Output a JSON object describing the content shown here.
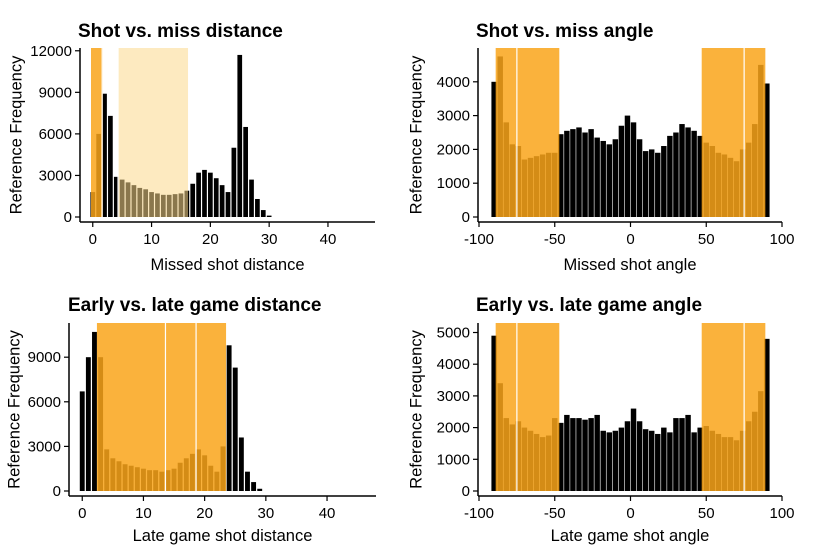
{
  "chart_data": [
    {
      "type": "bar",
      "title": "Shot vs. miss distance",
      "xlabel": "Missed shot distance",
      "ylabel": "Reference Frequency",
      "xlim": [
        -2,
        48
      ],
      "ylim": [
        0,
        12200
      ],
      "x_ticks": [
        0,
        10,
        20,
        30,
        40
      ],
      "y_ticks": [
        0,
        3000,
        6000,
        9000,
        12000
      ],
      "y_tick_labels": [
        "0",
        "3000",
        "6000",
        "9000",
        "12000"
      ],
      "bar_width": 0.8,
      "x": [
        0,
        1,
        2,
        3,
        4,
        5,
        6,
        7,
        8,
        9,
        10,
        11,
        12,
        13,
        14,
        15,
        16,
        17,
        18,
        19,
        20,
        21,
        22,
        23,
        24,
        25,
        26,
        27,
        28,
        29,
        30
      ],
      "values": [
        1800,
        6000,
        8900,
        7300,
        2900,
        2700,
        2500,
        2300,
        2100,
        2000,
        1800,
        1700,
        1600,
        1600,
        1650,
        1700,
        1900,
        2400,
        3200,
        3400,
        3200,
        2800,
        2300,
        1800,
        5000,
        11700,
        6500,
        2700,
        1300,
        500,
        100
      ],
      "shaded_regions": [
        {
          "x0": -0.3,
          "x1": 1.7,
          "color": "#f9a41a",
          "opacity": 0.85
        },
        {
          "x0": 4.3,
          "x1": 16.2,
          "color": "#fcd98c",
          "opacity": 0.55
        }
      ],
      "vlines": [
        1.6,
        4.3
      ]
    },
    {
      "type": "bar",
      "title": "Shot vs. miss angle",
      "xlabel": "Missed shot angle",
      "ylabel": "Reference Frequency",
      "xlim": [
        -100,
        100
      ],
      "ylim": [
        0,
        5000
      ],
      "x_ticks": [
        -100,
        -50,
        0,
        50,
        100
      ],
      "y_ticks": [
        0,
        1000,
        2000,
        3000,
        4000
      ],
      "y_tick_labels": [
        "0",
        "1000",
        "2000",
        "3000",
        "4000"
      ],
      "bar_width": 3.6,
      "x": [
        -90,
        -86,
        -82,
        -78,
        -74,
        -70,
        -66,
        -62,
        -58,
        -54,
        -50,
        -46,
        -42,
        -38,
        -34,
        -30,
        -26,
        -22,
        -18,
        -14,
        -10,
        -6,
        -2,
        2,
        6,
        10,
        14,
        18,
        22,
        26,
        30,
        34,
        38,
        42,
        46,
        50,
        54,
        58,
        62,
        66,
        70,
        74,
        78,
        82,
        86,
        90
      ],
      "values": [
        4000,
        4750,
        2800,
        2150,
        2100,
        1700,
        1750,
        1800,
        1850,
        1900,
        1900,
        2450,
        2550,
        2600,
        2650,
        2500,
        2600,
        2350,
        2250,
        2150,
        2300,
        2700,
        3000,
        2800,
        2300,
        1950,
        2000,
        1900,
        2100,
        2400,
        2500,
        2750,
        2650,
        2550,
        2400,
        2200,
        2100,
        1900,
        1850,
        1750,
        1650,
        2000,
        2200,
        2750,
        4500,
        3950
      ],
      "shaded_regions": [
        {
          "x0": -89,
          "x1": -47,
          "color": "#f9a41a",
          "opacity": 0.85
        },
        {
          "x0": 47,
          "x1": 89,
          "color": "#f9a41a",
          "opacity": 0.85
        }
      ],
      "vlines": [
        -75,
        75
      ]
    },
    {
      "type": "bar",
      "title": "Early vs. late game distance",
      "xlabel": "Late game shot distance",
      "ylabel": "Reference Frequency",
      "xlim": [
        -2,
        48
      ],
      "ylim": [
        0,
        11300
      ],
      "x_ticks": [
        0,
        10,
        20,
        30,
        40
      ],
      "y_ticks": [
        0,
        3000,
        6000,
        9000
      ],
      "y_tick_labels": [
        "0",
        "3000",
        "6000",
        "9000"
      ],
      "bar_width": 0.8,
      "x": [
        0,
        1,
        2,
        3,
        4,
        5,
        6,
        7,
        8,
        9,
        10,
        11,
        12,
        13,
        14,
        15,
        16,
        17,
        18,
        19,
        20,
        21,
        22,
        23,
        24,
        25,
        26,
        27,
        28,
        29
      ],
      "values": [
        6700,
        9000,
        10700,
        9000,
        2800,
        2200,
        2000,
        1800,
        1700,
        1600,
        1500,
        1400,
        1400,
        1300,
        1400,
        1500,
        1900,
        2200,
        2500,
        2800,
        2400,
        1700,
        1300,
        3000,
        9800,
        8300,
        3600,
        1300,
        600,
        150
      ],
      "shaded_regions": [
        {
          "x0": 2.4,
          "x1": 23.5,
          "color": "#f9a41a",
          "opacity": 0.85
        }
      ],
      "vlines": [
        13.6,
        18.6
      ]
    },
    {
      "type": "bar",
      "title": "Early vs. late game angle",
      "xlabel": "Late game shot angle",
      "ylabel": "Reference Frequency",
      "xlim": [
        -100,
        100
      ],
      "ylim": [
        0,
        5300
      ],
      "x_ticks": [
        -100,
        -50,
        0,
        50,
        100
      ],
      "y_ticks": [
        0,
        1000,
        2000,
        3000,
        4000,
        5000
      ],
      "y_tick_labels": [
        "0",
        "1000",
        "2000",
        "3000",
        "4000",
        "5000"
      ],
      "bar_width": 3.6,
      "x": [
        -90,
        -86,
        -82,
        -78,
        -74,
        -70,
        -66,
        -62,
        -58,
        -54,
        -50,
        -46,
        -42,
        -38,
        -34,
        -30,
        -26,
        -22,
        -18,
        -14,
        -10,
        -6,
        -2,
        2,
        6,
        10,
        14,
        18,
        22,
        26,
        30,
        34,
        38,
        42,
        46,
        50,
        54,
        58,
        62,
        66,
        70,
        74,
        78,
        82,
        86,
        90
      ],
      "values": [
        4900,
        3400,
        2300,
        2100,
        2200,
        2000,
        1900,
        1800,
        1700,
        1750,
        2300,
        2150,
        2400,
        2300,
        2300,
        2250,
        2300,
        2400,
        1900,
        1850,
        1900,
        2000,
        2200,
        2600,
        2200,
        1950,
        1900,
        1800,
        2000,
        1850,
        2300,
        2300,
        2400,
        1850,
        2000,
        2050,
        1900,
        1800,
        1700,
        1700,
        1600,
        1900,
        2200,
        2500,
        3150,
        4800
      ],
      "shaded_regions": [
        {
          "x0": -89,
          "x1": -47,
          "color": "#f9a41a",
          "opacity": 0.85
        },
        {
          "x0": 47,
          "x1": 89,
          "color": "#f9a41a",
          "opacity": 0.85
        }
      ],
      "vlines": [
        -75,
        75
      ]
    }
  ]
}
